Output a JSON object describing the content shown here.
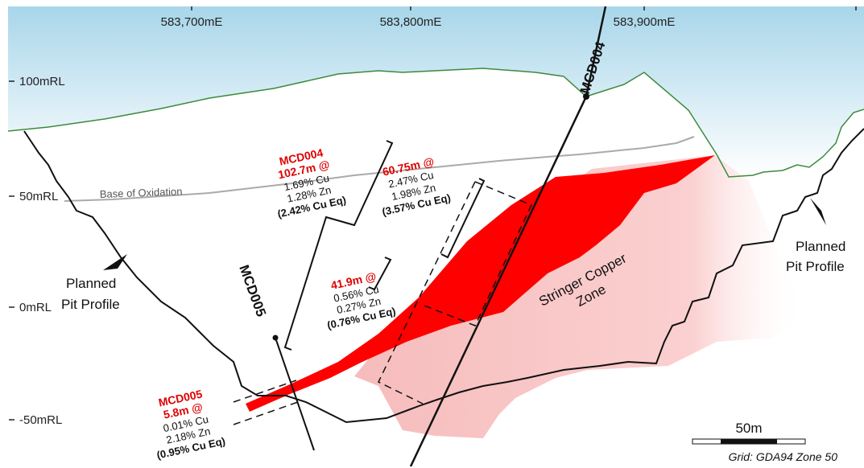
{
  "eastings": [
    "583,700mE",
    "583,800mE",
    "583,900mE"
  ],
  "elevations": [
    "100mRL",
    "50mRL",
    "0mRL",
    "-50mRL"
  ],
  "base_of_oxidation": "Base of Oxidation",
  "pit_profile_left": [
    "Planned",
    "Pit Profile"
  ],
  "pit_profile_right": [
    "Planned",
    "Pit Profile"
  ],
  "stringer_zone": [
    "Stringer Copper",
    "Zone"
  ],
  "drillholes": [
    {
      "name": "MCD004"
    },
    {
      "name": "MCD005"
    }
  ],
  "intercepts": {
    "mcd004_total": {
      "lines": [
        "MCD004",
        "102.7m @",
        "1.69% Cu",
        "1.28% Zn",
        "(2.42% Cu Eq)"
      ]
    },
    "mcd004_upper": {
      "lines": [
        "60.75m @",
        "2.47% Cu",
        "1.98% Zn",
        "(3.57% Cu Eq)"
      ]
    },
    "mcd004_lower": {
      "lines": [
        "41.9m @",
        "0.56% Cu",
        "0.27% Zn",
        "(0.76% Cu Eq)"
      ]
    },
    "mcd005": {
      "lines": [
        "MCD005",
        "5.8m @",
        "0.01% Cu",
        "2.18% Zn",
        "(0.95% Cu Eq)"
      ]
    }
  },
  "scale_bar": {
    "label": "50m"
  },
  "grid_note": "Grid: GDA94 Zone 50",
  "colors": {
    "sky_top": "#b3dcec",
    "ground_line": "#3c8a3c",
    "ore": "#ff0000",
    "stringer": "#f8c8c8",
    "oxidation": "#aaaaaa"
  }
}
